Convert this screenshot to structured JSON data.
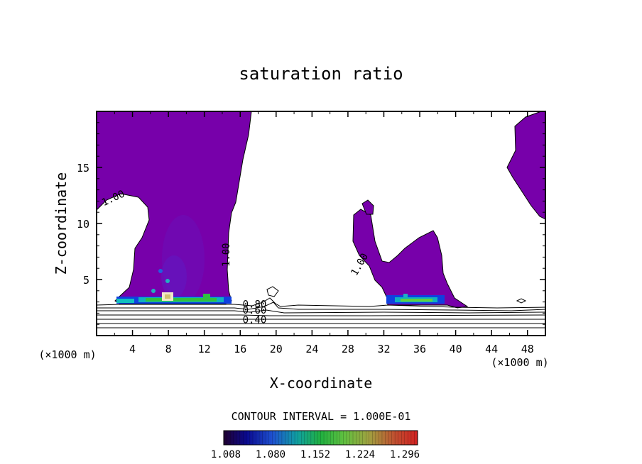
{
  "chart_data": {
    "type": "contour",
    "title": "saturation ratio",
    "xlabel": "X-coordinate",
    "ylabel": "Z-coordinate",
    "x_unit_left": "(×1000 m)",
    "x_unit_right": "(×1000 m)",
    "xlim": [
      0,
      50
    ],
    "ylim": [
      0,
      20
    ],
    "x_ticks": [
      4,
      8,
      12,
      16,
      20,
      24,
      28,
      32,
      36,
      40,
      44,
      48
    ],
    "y_ticks": [
      5,
      10,
      15
    ],
    "contour_labels": [
      {
        "text": "1.00",
        "x": 2,
        "z": 12
      },
      {
        "text": "1.00",
        "x": 14.8,
        "z": 7.2
      },
      {
        "text": "1.00",
        "x": 29.6,
        "z": 6.2
      },
      {
        "text": "0.80",
        "x": 17.6,
        "z": 2.5
      },
      {
        "text": "0.60",
        "x": 17.6,
        "z": 1.95
      },
      {
        "text": "0.40",
        "x": 17.6,
        "z": 1.1
      }
    ],
    "supersaturated_color": "#7700aa",
    "contour_interval_text": "CONTOUR INTERVAL = 1.000E-01",
    "colorbar": {
      "tick_labels": [
        "1.008",
        "1.080",
        "1.152",
        "1.224",
        "1.296"
      ],
      "range": [
        1.008,
        1.32
      ]
    }
  }
}
